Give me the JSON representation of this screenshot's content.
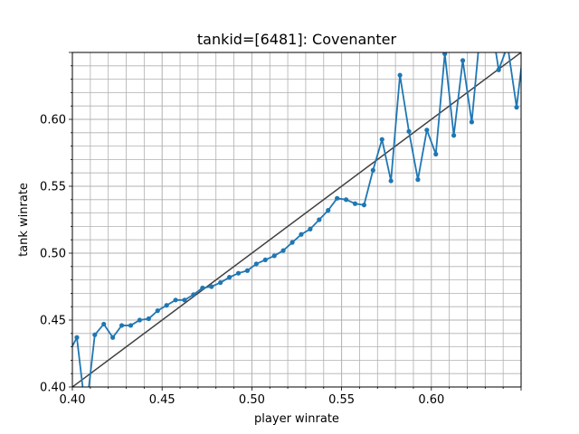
{
  "chart_data": {
    "type": "line",
    "title": "tankid=[6481]: Covenanter",
    "xlabel": "player winrate",
    "ylabel": "tank winrate",
    "xlim": [
      0.4,
      0.65
    ],
    "ylim": [
      0.4,
      0.65
    ],
    "grid": true,
    "x_ticks": [
      "0.40",
      "0.45",
      "0.50",
      "0.55",
      "0.60"
    ],
    "y_ticks": [
      "0.40",
      "0.45",
      "0.50",
      "0.55",
      "0.60"
    ],
    "x_tick_values": [
      0.4,
      0.45,
      0.5,
      0.55,
      0.6
    ],
    "y_tick_values": [
      0.4,
      0.45,
      0.5,
      0.55,
      0.6
    ],
    "colors": {
      "series": "#1f77b4",
      "reference": "#404040",
      "grid": "#b0b0b0"
    },
    "reference_line": {
      "x": [
        0.4,
        0.65
      ],
      "y": [
        0.4,
        0.65
      ]
    },
    "series": [
      {
        "x": [
          0.3975,
          0.4025,
          0.4075,
          0.4125,
          0.4175,
          0.4225,
          0.4275,
          0.4325,
          0.4375,
          0.4425,
          0.4475,
          0.4525,
          0.4575,
          0.4625,
          0.4675,
          0.4725,
          0.4775,
          0.4825,
          0.4875,
          0.4925,
          0.4975,
          0.5025,
          0.5075,
          0.5125,
          0.5175,
          0.5225,
          0.5275,
          0.5325,
          0.5375,
          0.5425,
          0.5475,
          0.5525,
          0.5575,
          0.5625,
          0.5675,
          0.5725,
          0.5775,
          0.5825,
          0.5875,
          0.5925,
          0.5975,
          0.6025,
          0.6075,
          0.6125,
          0.6175,
          0.6225,
          0.6275,
          0.6325,
          0.6375,
          0.6425,
          0.6475,
          0.6525
        ],
        "y": [
          0.424,
          0.437,
          0.38,
          0.439,
          0.447,
          0.437,
          0.446,
          0.446,
          0.45,
          0.451,
          0.457,
          0.461,
          0.465,
          0.465,
          0.469,
          0.474,
          0.475,
          0.478,
          0.482,
          0.485,
          0.487,
          0.492,
          0.495,
          0.498,
          0.502,
          0.508,
          0.514,
          0.518,
          0.525,
          0.532,
          0.541,
          0.54,
          0.537,
          0.536,
          0.562,
          0.585,
          0.554,
          0.633,
          0.591,
          0.555,
          0.592,
          0.574,
          0.649,
          0.588,
          0.644,
          0.598,
          0.67,
          0.68,
          0.637,
          0.655,
          0.609,
          0.666
        ]
      }
    ]
  }
}
